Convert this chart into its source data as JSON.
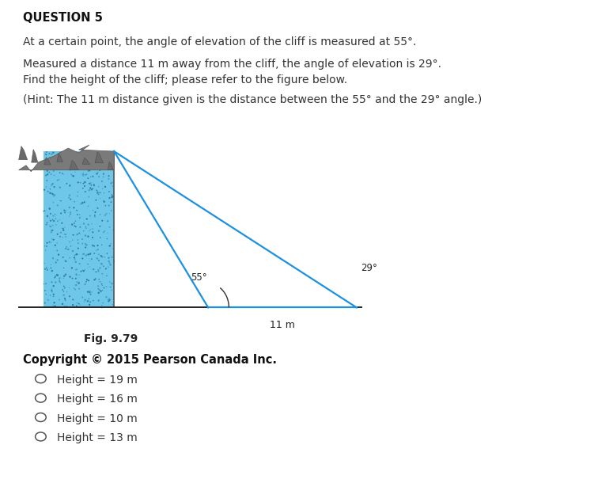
{
  "title": "QUESTION 5",
  "line1": "At a certain point, the angle of elevation of the cliff is measured at 55°.",
  "line2": "Measured a distance 11 m away from the cliff, the angle of elevation is 29°.",
  "line3": "Find the height of the cliff; please refer to the figure below.",
  "line4": "(Hint: The 11 m distance given is the distance between the 55° and the 29° angle.)",
  "fig_label": "Fig. 9.79",
  "copyright": "Copyright © 2015 Pearson Canada Inc.",
  "options": [
    "Height = 19 m",
    "Height = 16 m",
    "Height = 10 m",
    "Height = 13 m"
  ],
  "distance_label": "11 m",
  "cliff_fill_color": "#6ec6e8",
  "cliff_rock_color": "#8a8a8a",
  "line_color": "#1e90e0",
  "ground_color": "#222222",
  "background_color": "#ffffff",
  "text_color": "#333333",
  "angle1_label": "55°",
  "angle2_label": "29°"
}
